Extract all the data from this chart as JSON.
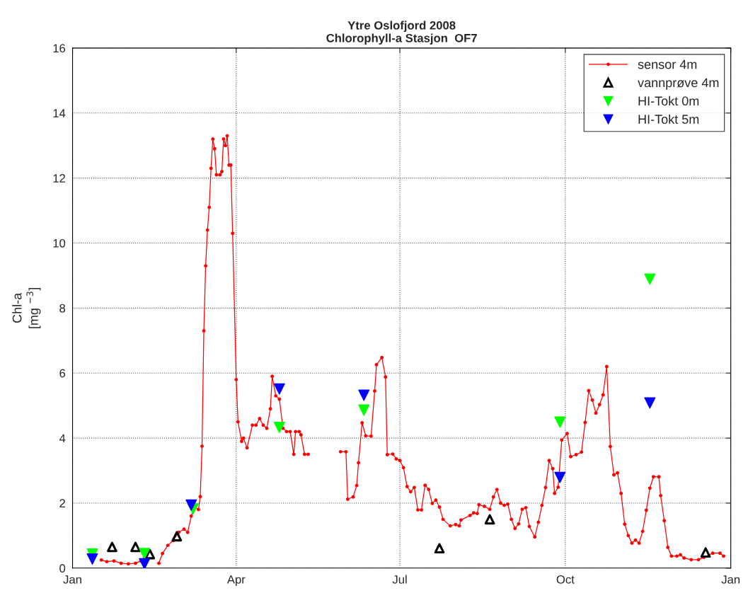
{
  "chart_data": {
    "type": "line",
    "title": "Ytre Oslofjord 2008\nChlorophyll-a Stasjon  OF7",
    "ylabel": "Chl-a\n[mg $^{−3}$]",
    "xlim": [
      "2008-01-01",
      "2009-01-01"
    ],
    "xticks": [
      {
        "value": "2008-01-01",
        "label": "Jan"
      },
      {
        "value": "2008-04-01",
        "label": "Apr"
      },
      {
        "value": "2008-07-01",
        "label": "Jul"
      },
      {
        "value": "2008-10-01",
        "label": "Oct"
      },
      {
        "value": "2009-01-01",
        "label": "Jan"
      }
    ],
    "ylim": [
      0,
      16
    ],
    "yticks": [
      0,
      2,
      4,
      6,
      8,
      10,
      12,
      14,
      16
    ],
    "grid": true,
    "legend": "top right",
    "series": [
      {
        "name": "sensor 4m",
        "color": "#ff0000",
        "marker": "circle",
        "line_style": "solid",
        "x": [
          "2008-01-17",
          "2008-01-20",
          "2008-01-24",
          "2008-01-28",
          "2008-02-01",
          "2008-02-05",
          "2008-02-08",
          "2008-02-10",
          "2008-02-14",
          "2008-02-18",
          "2008-02-20",
          "2008-02-23",
          "2008-02-26",
          "2008-02-29",
          "2008-03-03",
          "2008-03-05",
          "2008-03-07",
          "2008-03-09",
          "2008-03-11",
          "2008-03-12",
          "2008-03-13",
          "2008-03-14",
          "2008-03-15",
          "2008-03-16",
          "2008-03-17",
          "2008-03-18",
          "2008-03-19",
          "2008-03-20",
          "2008-03-21",
          "2008-03-23",
          "2008-03-24",
          "2008-03-25",
          "2008-03-26",
          "2008-03-27",
          "2008-03-28",
          "2008-03-29",
          "2008-03-30",
          "2008-04-01",
          "2008-04-02",
          "2008-04-04",
          "2008-04-05",
          "2008-04-07",
          "2008-04-10",
          "2008-04-12",
          "2008-04-14",
          "2008-04-16",
          "2008-04-18",
          "2008-04-20",
          "2008-04-21",
          "2008-04-23",
          "2008-04-25",
          "2008-04-27",
          "2008-04-29",
          "2008-05-01",
          "2008-05-03",
          "2008-05-04",
          "2008-05-06",
          "2008-05-07",
          "2008-05-09",
          "2008-05-11",
          "2008-05-20",
          "2008-05-29",
          "2008-06-01",
          "2008-06-02",
          "2008-06-05",
          "2008-06-07",
          "2008-06-08",
          "2008-06-10",
          "2008-06-12",
          "2008-06-15",
          "2008-06-17",
          "2008-06-18",
          "2008-06-21",
          "2008-06-23",
          "2008-06-24",
          "2008-06-27",
          "2008-06-29",
          "2008-07-01",
          "2008-07-03",
          "2008-07-05",
          "2008-07-07",
          "2008-07-09",
          "2008-07-11",
          "2008-07-13",
          "2008-07-15",
          "2008-07-17",
          "2008-07-19",
          "2008-07-21",
          "2008-07-23",
          "2008-07-25",
          "2008-07-29",
          "2008-08-01",
          "2008-08-03",
          "2008-08-04",
          "2008-08-09",
          "2008-08-11",
          "2008-08-13",
          "2008-08-14",
          "2008-08-17",
          "2008-08-20",
          "2008-08-22",
          "2008-08-24",
          "2008-08-26",
          "2008-08-28",
          "2008-08-30",
          "2008-09-01",
          "2008-09-03",
          "2008-09-05",
          "2008-09-07",
          "2008-09-09",
          "2008-09-11",
          "2008-09-14",
          "2008-09-16",
          "2008-09-18",
          "2008-09-20",
          "2008-09-22",
          "2008-09-24",
          "2008-09-25",
          "2008-09-27",
          "2008-09-29",
          "2008-10-02",
          "2008-10-04",
          "2008-10-07",
          "2008-10-10",
          "2008-10-12",
          "2008-10-14",
          "2008-10-16",
          "2008-10-18",
          "2008-10-20",
          "2008-10-22",
          "2008-10-24",
          "2008-10-26",
          "2008-10-28",
          "2008-10-30",
          "2008-11-01",
          "2008-11-03",
          "2008-11-05",
          "2008-11-07",
          "2008-11-09",
          "2008-11-11",
          "2008-11-13",
          "2008-11-15",
          "2008-11-17",
          "2008-11-19",
          "2008-11-22",
          "2008-11-23",
          "2008-11-25",
          "2008-11-27",
          "2008-11-29",
          "2008-12-02",
          "2008-12-04",
          "2008-12-06",
          "2008-12-10",
          "2008-12-14",
          "2008-12-17",
          "2008-12-22",
          "2008-12-26",
          "2008-12-28"
        ],
        "values": [
          0.25,
          0.2,
          0.22,
          0.15,
          0.13,
          0.15,
          0.22,
          0.3,
          null,
          0.15,
          0.45,
          0.7,
          0.85,
          1.1,
          1.2,
          1.1,
          1.6,
          1.9,
          1.8,
          2.2,
          3.75,
          7.3,
          9.3,
          10.4,
          11.1,
          12.3,
          13.2,
          12.9,
          12.1,
          12.1,
          12.2,
          13.2,
          13.0,
          13.3,
          12.4,
          12.4,
          10.3,
          5.8,
          4.5,
          3.9,
          4.0,
          3.7,
          4.4,
          4.4,
          4.6,
          4.4,
          4.3,
          4.9,
          5.9,
          5.3,
          5.2,
          4.3,
          4.2,
          4.2,
          3.5,
          4.2,
          4.2,
          4.1,
          3.5,
          3.5,
          null,
          3.58,
          3.58,
          2.12,
          2.19,
          2.54,
          3.24,
          4.47,
          4.07,
          4.06,
          5.45,
          6.26,
          6.48,
          5.88,
          3.49,
          3.51,
          3.36,
          3.31,
          3.09,
          2.51,
          2.35,
          2.48,
          1.79,
          1.79,
          2.55,
          2.42,
          1.99,
          2.09,
          1.88,
          1.5,
          1.3,
          1.34,
          1.3,
          1.48,
          1.62,
          1.7,
          1.68,
          1.95,
          1.9,
          1.81,
          2.19,
          2.42,
          2.0,
          1.93,
          1.97,
          1.5,
          1.22,
          1.36,
          1.81,
          1.86,
          1.28,
          0.96,
          1.41,
          1.93,
          2.48,
          3.31,
          3.06,
          2.3,
          2.49,
          3.94,
          4.14,
          3.43,
          3.49,
          3.57,
          4.48,
          5.46,
          5.17,
          4.77,
          5.03,
          5.33,
          6.2,
          3.74,
          2.87,
          2.93,
          2.3,
          1.35,
          1.0,
          0.77,
          0.86,
          0.77,
          1.13,
          1.78,
          2.46,
          2.81,
          2.81,
          2.23,
          1.46,
          0.64,
          0.37,
          0.37,
          0.41,
          0.31,
          0.26,
          0.26,
          0.33,
          0.46,
          0.46,
          0.37
        ]
      },
      {
        "name": "vannprøve 4m",
        "type": "scatter",
        "color": "#000000",
        "marker": "triangle",
        "x": [
          "2008-01-23",
          "2008-02-05",
          "2008-02-13",
          "2008-02-28",
          "2008-07-23",
          "2008-08-20",
          "2008-12-18"
        ],
        "values": [
          0.65,
          0.65,
          0.43,
          0.98,
          0.61,
          1.5,
          0.48
        ]
      },
      {
        "name": "HI-Tokt 0m",
        "type": "scatter",
        "color": "#00ff00",
        "marker": "triangle_down",
        "x": [
          "2008-01-12",
          "2008-02-10",
          "2008-03-08",
          "2008-04-25",
          "2008-06-11",
          "2008-09-28",
          "2008-11-17"
        ],
        "values": [
          0.43,
          0.45,
          1.82,
          4.33,
          4.86,
          4.49,
          8.89
        ]
      },
      {
        "name": "HI-Tokt 5m",
        "type": "scatter",
        "color": "#0000ff",
        "marker": "triangle_down",
        "x": [
          "2008-01-12",
          "2008-02-10",
          "2008-03-07",
          "2008-04-25",
          "2008-06-11",
          "2008-09-28",
          "2008-11-17"
        ],
        "values": [
          0.28,
          0.13,
          1.94,
          5.51,
          5.32,
          2.79,
          5.08
        ]
      }
    ]
  }
}
